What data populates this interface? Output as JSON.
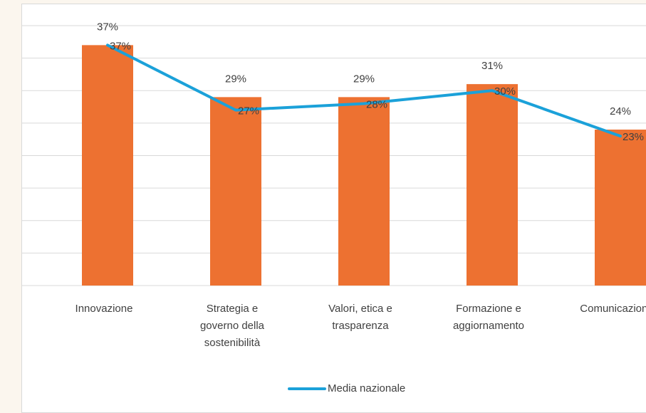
{
  "chart_data": {
    "type": "bar_line",
    "categories": [
      "Innovazione",
      "Strategia e governo della sostenibilità",
      "Valori, etica e trasparenza",
      "Formazione e aggiornamento",
      "Comunicazione"
    ],
    "series": [
      {
        "type": "bar",
        "color": "#ed7131",
        "values": [
          37,
          29,
          29,
          31,
          24
        ],
        "value_labels": [
          "37%",
          "29%",
          "29%",
          "31%",
          "24%"
        ]
      },
      {
        "type": "line",
        "name": "Media nazionale",
        "color": "#1ba1d9",
        "values": [
          37,
          27,
          28,
          30,
          23
        ],
        "value_labels": [
          "37%",
          "27%",
          "28%",
          "30%",
          "23%"
        ]
      }
    ],
    "ylim": [
      0,
      40
    ],
    "yticks": [
      0,
      5,
      10,
      15,
      20,
      25,
      30,
      35,
      40
    ],
    "grid": true,
    "legend": "bottom"
  }
}
